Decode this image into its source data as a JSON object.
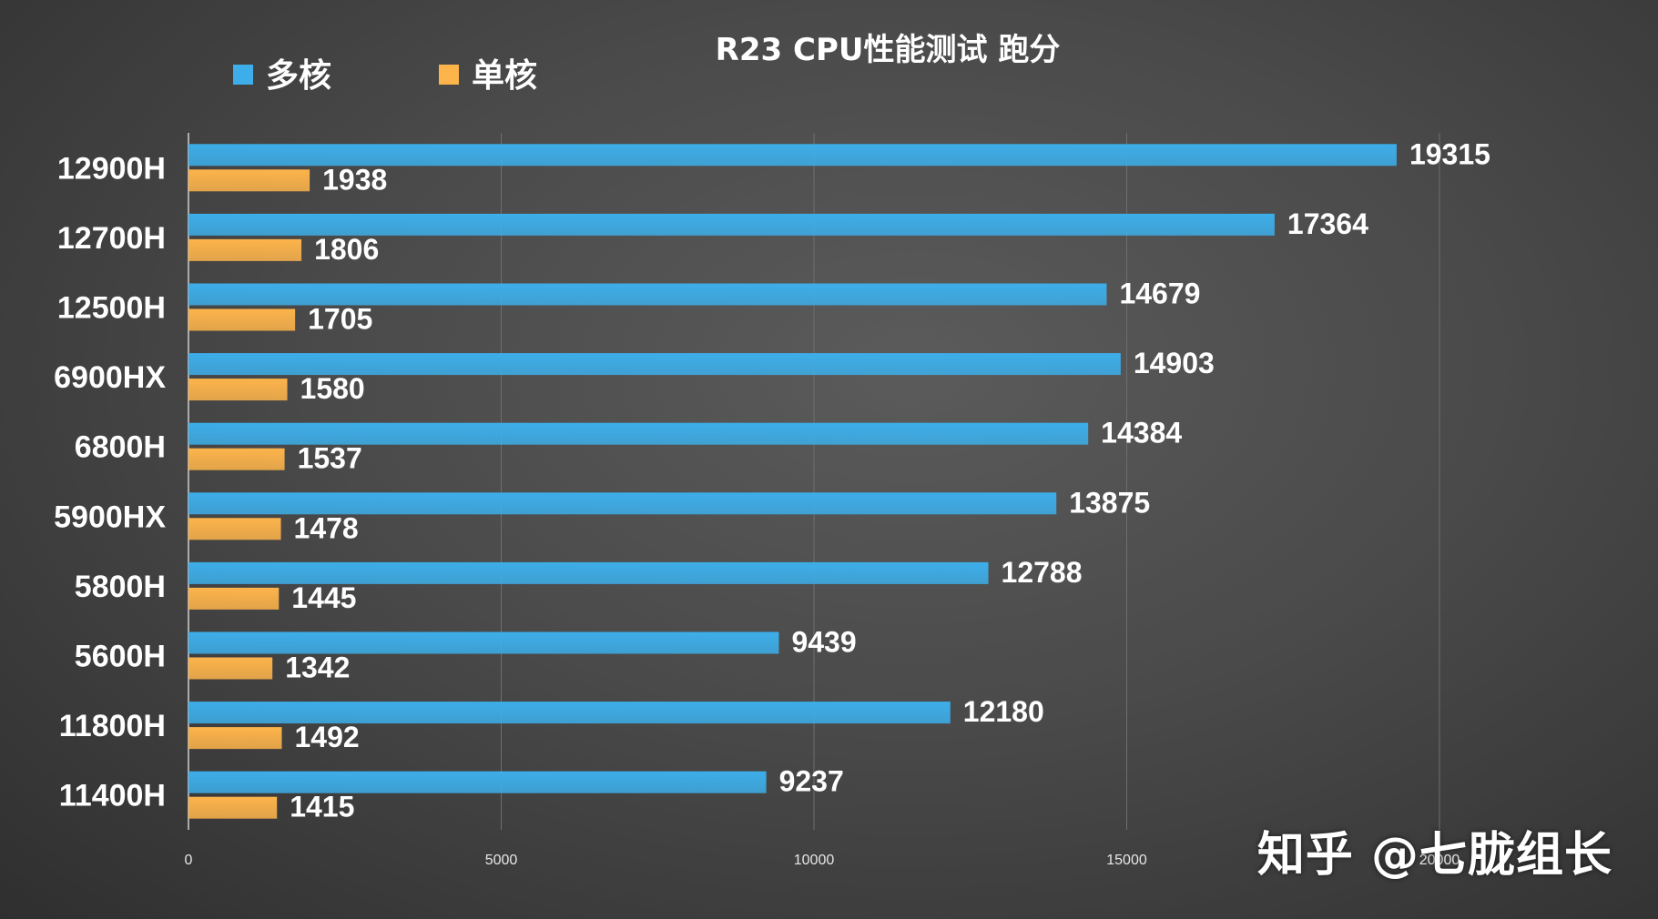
{
  "chart_data": {
    "type": "bar",
    "orientation": "horizontal",
    "title": "R23 CPU性能测试 跑分",
    "categories": [
      "12900H",
      "12700H",
      "12500H",
      "6900HX",
      "6800H",
      "5900HX",
      "5800H",
      "5600H",
      "11800H",
      "11400H"
    ],
    "series": [
      {
        "name": "多核",
        "color": "#3daee9",
        "values": [
          19315,
          17364,
          14679,
          14903,
          14384,
          13875,
          12788,
          9439,
          12180,
          9237
        ]
      },
      {
        "name": "单核",
        "color": "#fdb44b",
        "values": [
          1938,
          1806,
          1705,
          1580,
          1537,
          1478,
          1445,
          1342,
          1492,
          1415
        ]
      }
    ],
    "xlim": [
      0,
      20000
    ],
    "x_ticks": [
      "0",
      "5000",
      "10000",
      "15000",
      "20000"
    ],
    "grid": true,
    "legend_position": "top-left",
    "data_labels": true
  },
  "watermark": "知乎 @七胧组长"
}
